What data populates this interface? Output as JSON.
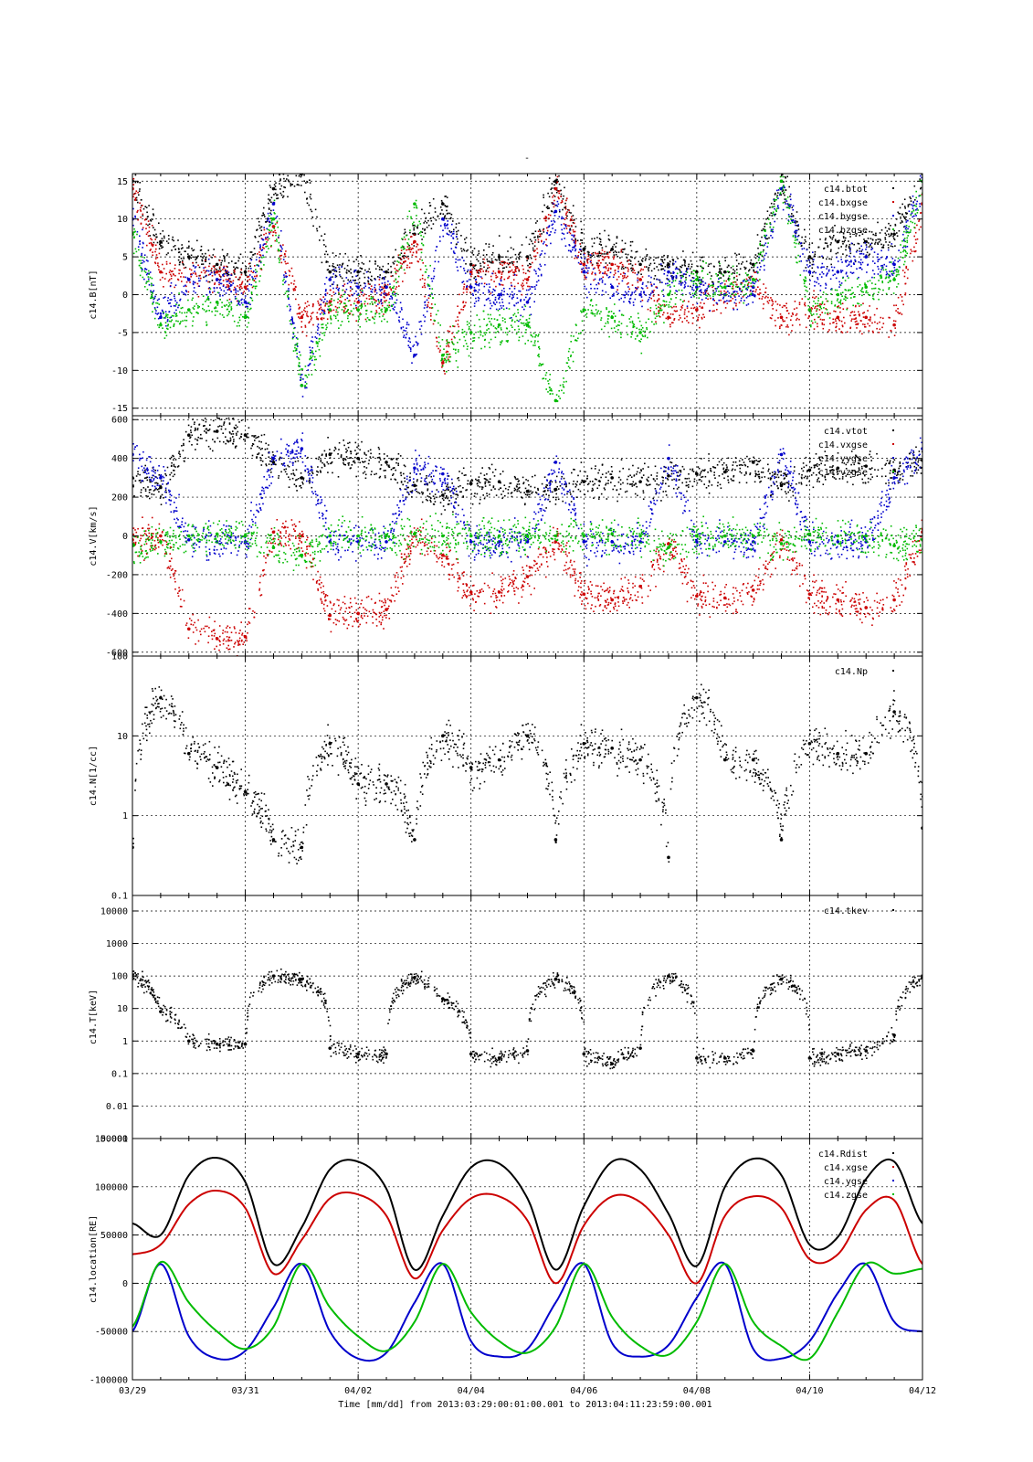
{
  "figure": {
    "top_mark": "-",
    "xlabel": "Time [mm/dd]  from 2013:03:29:00:01:00.001  to  2013:04:11:23:59:00.001",
    "x_tick_labels": [
      "03/29",
      "03/31",
      "04/02",
      "04/04",
      "04/06",
      "04/08",
      "04/10",
      "04/12"
    ],
    "x_tick_days": [
      0,
      2,
      4,
      6,
      8,
      10,
      12,
      14
    ],
    "xlim_days": [
      0,
      14
    ]
  },
  "chart_data": [
    {
      "type": "scatter",
      "id": "B",
      "ylabel": "c14.B[nT]",
      "ylim": [
        -16,
        16
      ],
      "yscale": "linear",
      "yticks": [
        -15,
        -10,
        -5,
        0,
        5,
        10,
        15
      ],
      "ytick_labels": [
        "-15",
        "-10",
        "-5",
        "0",
        "5",
        "10",
        "15"
      ],
      "grid": true,
      "legend_position": "top-right",
      "x": [
        0,
        0.5,
        1,
        1.5,
        2,
        2.5,
        3,
        3.5,
        4,
        4.5,
        5,
        5.5,
        6,
        6.5,
        7,
        7.5,
        8,
        8.5,
        9,
        9.5,
        10,
        10.5,
        11,
        11.5,
        12,
        12.5,
        13,
        13.5,
        14
      ],
      "series": [
        {
          "name": "c14.btot",
          "color": "#000000",
          "values": [
            15,
            7,
            5,
            4,
            3,
            14,
            16,
            3,
            3,
            3,
            8,
            12,
            4,
            5,
            5,
            15,
            6,
            6,
            4,
            4,
            3,
            3,
            4,
            15,
            5,
            7,
            7,
            8,
            16
          ]
        },
        {
          "name": "c14.bxgse",
          "color": "#cc0000",
          "values": [
            14,
            3,
            2,
            3,
            1,
            9,
            -3,
            -1,
            -1,
            0,
            7,
            -9,
            3,
            3,
            2,
            14,
            4,
            4,
            2,
            -3,
            -2,
            0,
            2,
            -3,
            -2,
            -3,
            -3,
            -4,
            12
          ]
        },
        {
          "name": "c14.bygse",
          "color": "#0000cc",
          "values": [
            10,
            -3,
            2,
            2,
            -1,
            12,
            -12,
            2,
            1,
            1,
            -8,
            10,
            1,
            0,
            -1,
            11,
            3,
            1,
            0,
            3,
            1,
            0,
            1,
            14,
            3,
            3,
            5,
            4,
            15
          ]
        },
        {
          "name": "c14.bzgse",
          "color": "#00bb00",
          "values": [
            8,
            -4,
            -2,
            -1,
            -3,
            10,
            -12,
            -2,
            -2,
            -2,
            12,
            -8,
            -5,
            -4,
            -4,
            -14,
            -2,
            -3,
            -5,
            0,
            2,
            1,
            2,
            15,
            -2,
            0,
            1,
            2,
            15
          ]
        }
      ]
    },
    {
      "type": "scatter",
      "id": "V",
      "ylabel": "c14.V[km/s]",
      "ylim": [
        -620,
        620
      ],
      "yscale": "linear",
      "yticks": [
        -600,
        -400,
        -200,
        0,
        200,
        400,
        600
      ],
      "ytick_labels": [
        "-600",
        "-400",
        "-200",
        "0",
        "200",
        "400",
        "600"
      ],
      "grid": true,
      "legend_position": "top-right",
      "x": [
        0,
        0.5,
        1,
        1.5,
        2,
        2.5,
        3,
        3.5,
        4,
        4.5,
        5,
        5.5,
        6,
        6.5,
        7,
        7.5,
        8,
        8.5,
        9,
        9.5,
        10,
        10.5,
        11,
        11.5,
        12,
        12.5,
        13,
        13.5,
        14
      ],
      "series": [
        {
          "name": "c14.vtot",
          "color": "#000000",
          "values": [
            300,
            250,
            520,
            540,
            520,
            380,
            300,
            420,
            400,
            380,
            260,
            210,
            270,
            280,
            230,
            240,
            280,
            300,
            280,
            310,
            320,
            330,
            380,
            260,
            340,
            350,
            360,
            340,
            390
          ]
        },
        {
          "name": "c14.vxgse",
          "color": "#cc0000",
          "values": [
            -20,
            0,
            -480,
            -530,
            -520,
            20,
            0,
            -410,
            -400,
            -380,
            10,
            -100,
            -290,
            -290,
            -210,
            -30,
            -300,
            -330,
            -260,
            -40,
            -310,
            -320,
            -280,
            -20,
            -300,
            -330,
            -370,
            -330,
            20
          ]
        },
        {
          "name": "c14.vygse",
          "color": "#0000cc",
          "values": [
            420,
            300,
            -20,
            -30,
            -30,
            400,
            450,
            -30,
            -30,
            -30,
            350,
            320,
            -30,
            -30,
            -30,
            380,
            -30,
            -30,
            -30,
            400,
            -30,
            -30,
            -30,
            420,
            -30,
            -30,
            -30,
            300,
            450
          ]
        },
        {
          "name": "c14.vzgse",
          "color": "#00bb00",
          "values": [
            -50,
            -30,
            0,
            10,
            0,
            -60,
            -100,
            0,
            0,
            0,
            10,
            0,
            0,
            0,
            0,
            0,
            0,
            10,
            0,
            -60,
            0,
            0,
            0,
            -40,
            10,
            0,
            0,
            -50,
            -20
          ]
        }
      ]
    },
    {
      "type": "scatter",
      "id": "N",
      "ylabel": "c14.N[1/cc]",
      "ylim": [
        0.1,
        100
      ],
      "yscale": "log",
      "yticks": [
        0.1,
        1,
        10,
        100
      ],
      "ytick_labels": [
        "0.1",
        "1",
        "10",
        "100"
      ],
      "grid": true,
      "legend_position": "top-right",
      "x": [
        0,
        0.5,
        1,
        1.5,
        2,
        2.5,
        3,
        3.5,
        4,
        4.5,
        5,
        5.5,
        6,
        6.5,
        7,
        7.5,
        8,
        8.5,
        9,
        9.5,
        10,
        10.5,
        11,
        11.5,
        12,
        12.5,
        13,
        13.5,
        14
      ],
      "series": [
        {
          "name": "c14.Np",
          "color": "#000000",
          "values": [
            0.4,
            30,
            6,
            4,
            2,
            0.5,
            0.4,
            8,
            2.5,
            2.5,
            0.5,
            10,
            4,
            5,
            10,
            0.5,
            8,
            7,
            5,
            0.3,
            30,
            5,
            5,
            0.5,
            8,
            6,
            6,
            20,
            0.7
          ]
        }
      ]
    },
    {
      "type": "scatter",
      "id": "T",
      "ylabel": "c14.T[keV]",
      "ylim": [
        0.001,
        30000
      ],
      "yscale": "log",
      "yticks": [
        0.001,
        0.01,
        0.1,
        1,
        10,
        100,
        1000,
        10000
      ],
      "ytick_labels": [
        "0.001",
        "0.01",
        "0.1",
        "1",
        "10",
        "100",
        "1000",
        "10000"
      ],
      "grid": true,
      "legend_position": "top-right",
      "x": [
        0,
        0.5,
        1,
        1.5,
        2,
        2.5,
        3,
        3.5,
        4,
        4.5,
        5,
        5.5,
        6,
        6.5,
        7,
        7.5,
        8,
        8.5,
        9,
        9.5,
        10,
        10.5,
        11,
        11.5,
        12,
        12.5,
        13,
        13.5,
        14
      ],
      "series": [
        {
          "name": "c14.tkev",
          "color": "#000000",
          "values": [
            100,
            8,
            1,
            0.8,
            0.8,
            100,
            80,
            0.6,
            0.4,
            0.4,
            90,
            20,
            0.4,
            0.3,
            0.5,
            80,
            0.4,
            0.2,
            0.6,
            100,
            0.3,
            0.3,
            0.5,
            80,
            0.3,
            0.4,
            0.5,
            1.5,
            90
          ]
        }
      ]
    },
    {
      "type": "line",
      "id": "location",
      "ylabel": "c14.location[RE]",
      "ylim": [
        -100000,
        150000
      ],
      "yscale": "linear",
      "yticks": [
        -100000,
        -50000,
        0,
        50000,
        100000,
        150000
      ],
      "ytick_labels": [
        "-100000",
        "-50000",
        "0",
        "50000",
        "100000",
        "150000"
      ],
      "grid": true,
      "legend_position": "top-right",
      "x": [
        0,
        0.5,
        1,
        1.5,
        2,
        2.5,
        3,
        3.5,
        4,
        4.5,
        5,
        5.5,
        6,
        6.5,
        7,
        7.5,
        8,
        8.5,
        9,
        9.5,
        10,
        10.5,
        11,
        11.5,
        12,
        12.5,
        13,
        13.5,
        14
      ],
      "series": [
        {
          "name": "c14.Rdist",
          "color": "#000000",
          "values": [
            62000,
            50000,
            112000,
            130000,
            105000,
            20000,
            58000,
            118000,
            126000,
            98000,
            14000,
            70000,
            120000,
            124000,
            88000,
            14000,
            80000,
            126000,
            118000,
            72000,
            18000,
            100000,
            129000,
            112000,
            40000,
            48000,
            108000,
            126000,
            62000
          ]
        },
        {
          "name": "c14.xgse",
          "color": "#cc0000",
          "values": [
            30000,
            40000,
            82000,
            96000,
            78000,
            10000,
            45000,
            88000,
            92000,
            70000,
            5000,
            55000,
            88000,
            90000,
            65000,
            0,
            60000,
            90000,
            84000,
            50000,
            0,
            70000,
            90000,
            78000,
            25000,
            30000,
            76000,
            86000,
            20000
          ]
        },
        {
          "name": "c14.ygse",
          "color": "#0000cc",
          "values": [
            -50000,
            20000,
            -55000,
            -78000,
            -70000,
            -25000,
            20000,
            -50000,
            -78000,
            -72000,
            -20000,
            20000,
            -60000,
            -76000,
            -68000,
            -20000,
            20000,
            -62000,
            -76000,
            -64000,
            -15000,
            20000,
            -68000,
            -78000,
            -60000,
            -10000,
            20000,
            -40000,
            -50000
          ]
        },
        {
          "name": "c14.zgse",
          "color": "#00bb00",
          "values": [
            -45000,
            22000,
            -20000,
            -50000,
            -68000,
            -45000,
            20000,
            -25000,
            -55000,
            -70000,
            -40000,
            20000,
            -30000,
            -60000,
            -72000,
            -45000,
            20000,
            -35000,
            -65000,
            -74000,
            -40000,
            20000,
            -40000,
            -65000,
            -78000,
            -30000,
            20000,
            10000,
            15000
          ]
        }
      ]
    }
  ]
}
